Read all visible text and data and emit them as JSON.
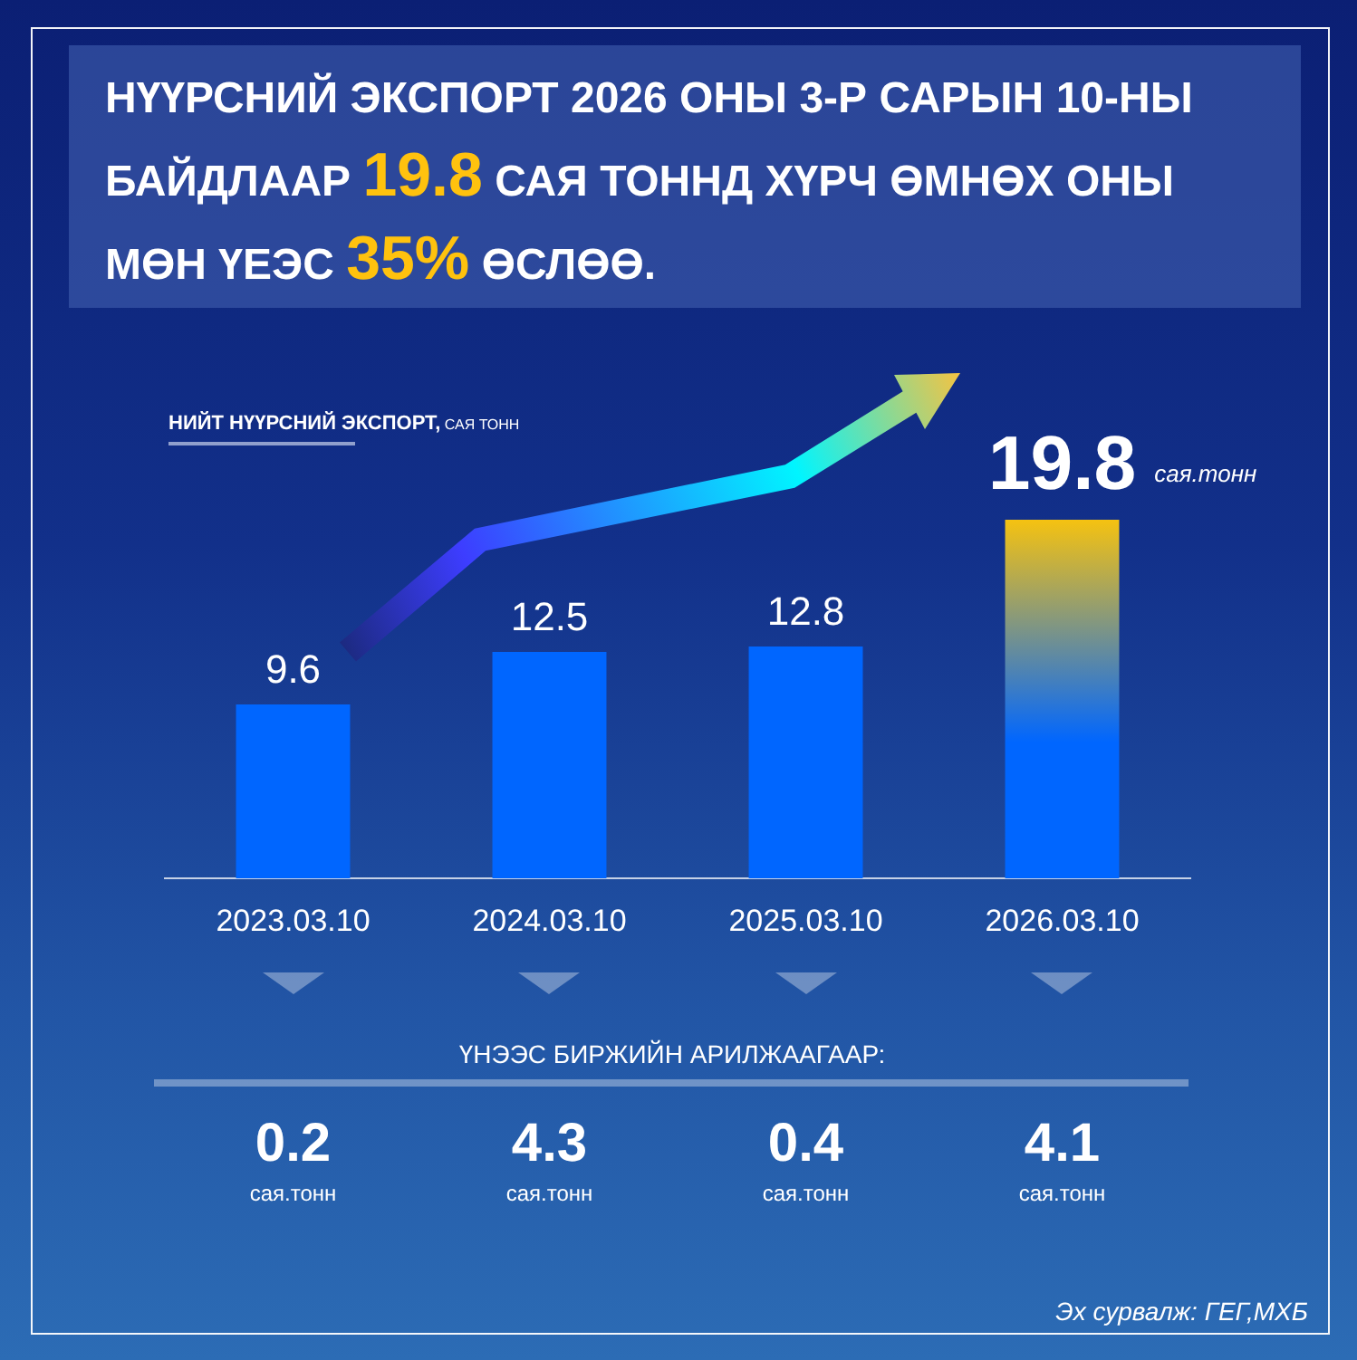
{
  "chart_data": [
    {
      "type": "bar",
      "title": "НҮҮРСНИЙ ЭКСПОРТ 2026 ОНЫ 3-Р САРЫН 10-НЫ БАЙДЛААР 19.8 САЯ ТОННД ХҮРЧ ӨМНӨХ ОНЫ МӨН ҮЕЭС 35% ӨСЛӨӨ.",
      "subtitle": "НИЙТ НҮҮРСНИЙ ЭКСПОРТ,",
      "ylabel": "САЯ ТОНН",
      "categories": [
        "2023.03.10",
        "2024.03.10",
        "2025.03.10",
        "2026.03.10"
      ],
      "values": [
        9.6,
        12.5,
        12.8,
        19.8
      ],
      "color": "#0066ff",
      "colors": [
        "#0066ff",
        "#0066ff",
        "#0066ff",
        "#f5c211"
      ],
      "data_labels": true,
      "annotations": [
        "сая.тонн"
      ]
    },
    {
      "type": "other",
      "title": "ҮНЭЭС БИРЖИЙН АРИЛЖААГААР:",
      "values": [
        0.2,
        4.3,
        0.4,
        4.1
      ],
      "ylabel": "сая.тонн",
      "data_labels": true,
      "annotations": [
        "Эх сурвалж: ГЕГ,МХБ"
      ]
    }
  ]
}
